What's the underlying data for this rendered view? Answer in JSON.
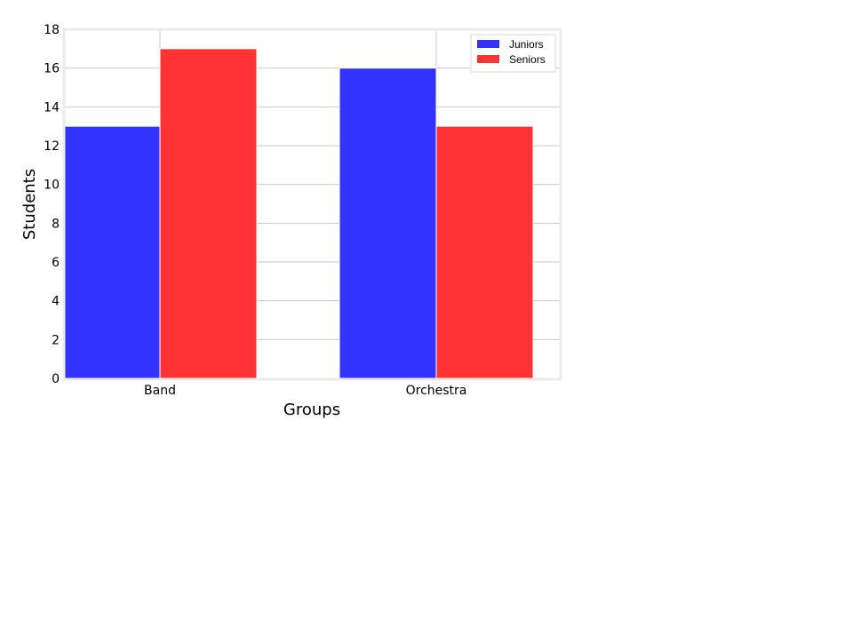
{
  "chart_data": {
    "type": "bar",
    "title": "",
    "xlabel": "Groups",
    "ylabel": "Students",
    "categories": [
      "Band",
      "Orchestra"
    ],
    "series": [
      {
        "name": "Juniors",
        "values": [
          13,
          16
        ],
        "color": "#3333ff"
      },
      {
        "name": "Seniors",
        "values": [
          17,
          13
        ],
        "color": "#ff3333"
      }
    ],
    "ylim": [
      0,
      18
    ],
    "yticks": [
      0,
      2,
      4,
      6,
      8,
      10,
      12,
      14,
      16,
      18
    ],
    "grid": true,
    "legend_position": "top-right",
    "colors": {
      "grid": "#c8c8c8",
      "frame": "#ebebeb",
      "bar_edge": "#ffffff",
      "legend_frame": "#ebebeb"
    }
  }
}
